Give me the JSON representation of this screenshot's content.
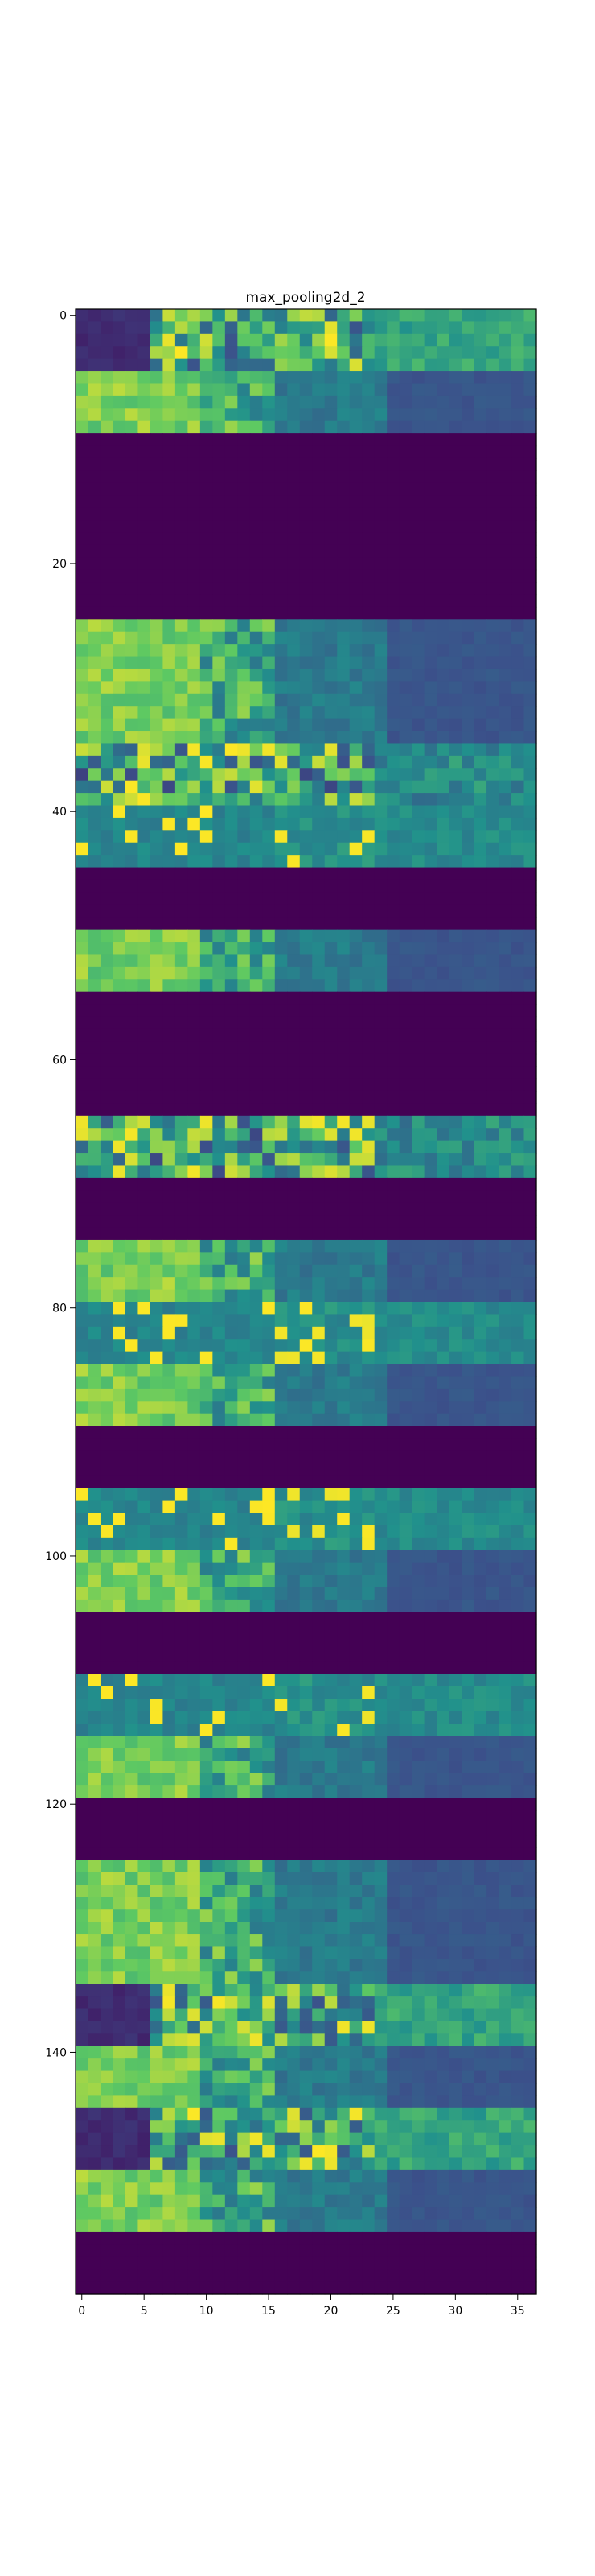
{
  "chart_data": {
    "type": "heatmap",
    "title": "max_pooling2d_2",
    "xlabel": "",
    "ylabel": "",
    "colormap": "viridis",
    "cols": 37,
    "rows": 160,
    "xlim": [
      -0.5,
      36.5
    ],
    "ylim": [
      159.5,
      -0.5
    ],
    "xticks": [
      0,
      5,
      10,
      15,
      20,
      25,
      30,
      35
    ],
    "yticks": [
      0,
      20,
      40,
      60,
      80,
      100,
      120,
      140
    ],
    "grid": false,
    "bands": [
      {
        "rows": [
          0,
          4
        ],
        "pattern": "dark-left-bright-center"
      },
      {
        "rows": [
          5,
          9
        ],
        "pattern": "green-left-blue-right"
      },
      {
        "rows": [
          10,
          24
        ],
        "pattern": "empty"
      },
      {
        "rows": [
          25,
          34
        ],
        "pattern": "green-left-blue-right"
      },
      {
        "rows": [
          35,
          39
        ],
        "pattern": "mixed-bright-spots"
      },
      {
        "rows": [
          40,
          44
        ],
        "pattern": "teal-flat-with-spots"
      },
      {
        "rows": [
          45,
          49
        ],
        "pattern": "empty"
      },
      {
        "rows": [
          50,
          54
        ],
        "pattern": "green-left-blue-right"
      },
      {
        "rows": [
          55,
          64
        ],
        "pattern": "empty"
      },
      {
        "rows": [
          65,
          69
        ],
        "pattern": "mixed-bright-spots"
      },
      {
        "rows": [
          70,
          74
        ],
        "pattern": "empty"
      },
      {
        "rows": [
          75,
          79
        ],
        "pattern": "green-left-blue-right"
      },
      {
        "rows": [
          80,
          84
        ],
        "pattern": "teal-flat-with-spots"
      },
      {
        "rows": [
          85,
          89
        ],
        "pattern": "green-left-blue-right"
      },
      {
        "rows": [
          90,
          94
        ],
        "pattern": "empty"
      },
      {
        "rows": [
          95,
          99
        ],
        "pattern": "teal-flat-with-spots"
      },
      {
        "rows": [
          100,
          104
        ],
        "pattern": "green-left-blue-right"
      },
      {
        "rows": [
          105,
          109
        ],
        "pattern": "empty"
      },
      {
        "rows": [
          110,
          114
        ],
        "pattern": "teal-flat-with-spots"
      },
      {
        "rows": [
          115,
          119
        ],
        "pattern": "green-left-blue-right"
      },
      {
        "rows": [
          120,
          124
        ],
        "pattern": "empty"
      },
      {
        "rows": [
          125,
          134
        ],
        "pattern": "green-left-blue-right"
      },
      {
        "rows": [
          135,
          139
        ],
        "pattern": "dark-left-bright-center"
      },
      {
        "rows": [
          140,
          144
        ],
        "pattern": "green-left-blue-right"
      },
      {
        "rows": [
          145,
          149
        ],
        "pattern": "dark-left-bright-center"
      },
      {
        "rows": [
          150,
          154
        ],
        "pattern": "green-left-blue-right"
      },
      {
        "rows": [
          155,
          159
        ],
        "pattern": "empty"
      }
    ]
  }
}
